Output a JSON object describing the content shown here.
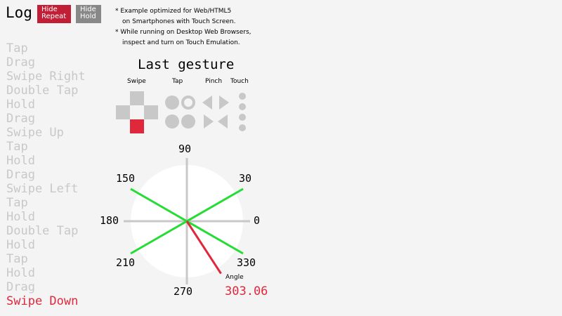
{
  "header": {
    "title": "Log",
    "hide_repeat": "Hide Repeat",
    "hide_hold": "Hide Hold"
  },
  "notes": [
    "* Example optimized for Web/HTML5",
    "on Smartphones with Touch Screen.",
    "* While running on Desktop Web Browsers,",
    "inspect and turn on Touch Emulation."
  ],
  "log": [
    "Tap",
    "Drag",
    "Swipe Right",
    "Double Tap",
    "Hold",
    "Drag",
    "Swipe Up",
    "Tap",
    "Hold",
    "Drag",
    "Swipe Left",
    "Tap",
    "Hold",
    "Double Tap",
    "Hold",
    "Tap",
    "Hold",
    "Drag",
    "Swipe Down"
  ],
  "gesture": {
    "title": "Last gesture",
    "labels": [
      "Swipe",
      "Tap",
      "Pinch",
      "Touch"
    ],
    "active_swipe": "down"
  },
  "dial": {
    "ticks": [
      "90",
      "30",
      "0",
      "330",
      "270",
      "210",
      "180",
      "150"
    ],
    "angle_label": "Angle",
    "angle": "303.06",
    "angle_value": 303.06
  },
  "colors": {
    "accent": "#e0283c",
    "guide": "#22dd33",
    "inactive": "#c8c8c8"
  }
}
